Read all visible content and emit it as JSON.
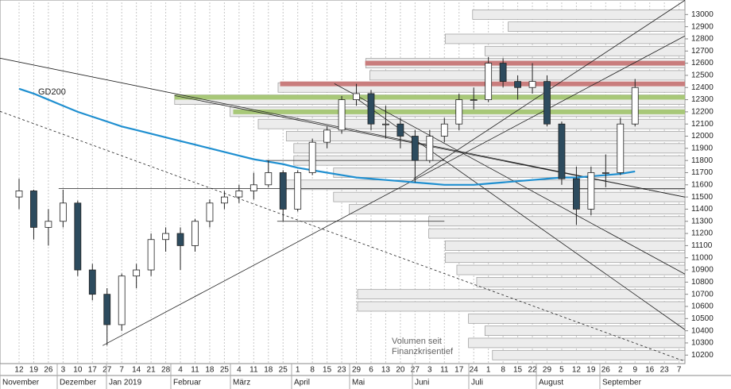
{
  "chart_data": {
    "type": "candlestick",
    "ylim": [
      10130,
      13100
    ],
    "yticks": [
      10200,
      10300,
      10400,
      10500,
      10600,
      10700,
      10800,
      10900,
      11000,
      11100,
      11200,
      11300,
      11400,
      11500,
      11600,
      11700,
      11800,
      11900,
      12000,
      12100,
      12200,
      12300,
      12400,
      12500,
      12600,
      12700,
      12800,
      12900,
      13000
    ],
    "x_tick_labels": [
      "12",
      "19",
      "26",
      "3",
      "10",
      "17",
      "27",
      "7",
      "14",
      "21",
      "28",
      "4",
      "11",
      "18",
      "25",
      "4",
      "11",
      "18",
      "25",
      "1",
      "8",
      "15",
      "23",
      "29",
      "6",
      "13",
      "20",
      "27",
      "3",
      "11",
      "17",
      "24",
      "1",
      "8",
      "15",
      "22",
      "29",
      "5",
      "12",
      "19",
      "26",
      "2",
      "9",
      "16",
      "23",
      "7"
    ],
    "months": [
      "November",
      "Dezember",
      "Jan 2019",
      "Februar",
      "März",
      "April",
      "Mai",
      "Juni",
      "Juli",
      "August",
      "September"
    ],
    "candles": [
      [
        11500,
        11650,
        11400,
        11550
      ],
      [
        11550,
        11560,
        11150,
        11250
      ],
      [
        11250,
        11400,
        11100,
        11300
      ],
      [
        11300,
        11560,
        11250,
        11450
      ],
      [
        11450,
        11470,
        10850,
        10900
      ],
      [
        10900,
        10950,
        10650,
        10700
      ],
      [
        10700,
        10750,
        10280,
        10450
      ],
      [
        10450,
        10870,
        10400,
        10850
      ],
      [
        10850,
        10950,
        10750,
        10900
      ],
      [
        10900,
        11200,
        10850,
        11150
      ],
      [
        11150,
        11250,
        11050,
        11200
      ],
      [
        11200,
        11250,
        10900,
        11100
      ],
      [
        11100,
        11320,
        11050,
        11300
      ],
      [
        11300,
        11480,
        11250,
        11450
      ],
      [
        11450,
        11550,
        11400,
        11500
      ],
      [
        11500,
        11600,
        11450,
        11550
      ],
      [
        11550,
        11700,
        11480,
        11600
      ],
      [
        11600,
        11800,
        11580,
        11700
      ],
      [
        11700,
        11720,
        11300,
        11400
      ],
      [
        11400,
        11720,
        11380,
        11700
      ],
      [
        11700,
        11980,
        11680,
        11950
      ],
      [
        11950,
        12080,
        11900,
        12050
      ],
      [
        12050,
        12330,
        12020,
        12300
      ],
      [
        12300,
        12430,
        12250,
        12350
      ],
      [
        12350,
        12380,
        12050,
        12100
      ],
      [
        12100,
        12250,
        11980,
        12100
      ],
      [
        12100,
        12150,
        11900,
        12000
      ],
      [
        12000,
        12050,
        11620,
        11800
      ],
      [
        11800,
        12050,
        11780,
        12000
      ],
      [
        12000,
        12150,
        11950,
        12100
      ],
      [
        12100,
        12350,
        12050,
        12300
      ],
      [
        12300,
        12400,
        12220,
        12300
      ],
      [
        12300,
        12650,
        12280,
        12600
      ],
      [
        12600,
        12640,
        12400,
        12450
      ],
      [
        12450,
        12500,
        12300,
        12400
      ],
      [
        12400,
        12600,
        12350,
        12450
      ],
      [
        12450,
        12500,
        12080,
        12100
      ],
      [
        12100,
        12120,
        11600,
        11650
      ],
      [
        11650,
        11750,
        11270,
        11400
      ],
      [
        11400,
        11750,
        11350,
        11700
      ],
      [
        11700,
        11850,
        11580,
        11700
      ],
      [
        11700,
        12150,
        11680,
        12100
      ],
      [
        12100,
        12470,
        12080,
        12400
      ]
    ],
    "up_color": "#ffffff",
    "down_color": "#2d4b5e",
    "gd200": {
      "name": "GD200",
      "color": "#1f8fd0",
      "values": [
        12390,
        12350,
        12300,
        12250,
        12200,
        12160,
        12120,
        12080,
        12050,
        12020,
        11990,
        11960,
        11930,
        11900,
        11870,
        11840,
        11810,
        11790,
        11770,
        11740,
        11720,
        11700,
        11680,
        11660,
        11650,
        11640,
        11630,
        11620,
        11610,
        11600,
        11600,
        11600,
        11610,
        11620,
        11630,
        11640,
        11650,
        11660,
        11660,
        11670,
        11680,
        11690,
        11710
      ]
    },
    "volume_profile": {
      "label": "Volumen seit Finanzkrisentief",
      "xlim": [
        0,
        1000
      ],
      "levels": [
        13000,
        12900,
        12800,
        12700,
        12600,
        12500,
        12400,
        12300,
        12200,
        12100,
        12000,
        11900,
        11800,
        11700,
        11600,
        11500,
        11400,
        11300,
        11200,
        11100,
        11000,
        10900,
        10800,
        10700,
        10600,
        10500,
        10400,
        10300,
        10200
      ],
      "values": [
        310,
        258,
        350,
        292,
        466,
        460,
        594,
        745,
        664,
        623,
        582,
        571,
        571,
        513,
        582,
        513,
        490,
        374,
        374,
        350,
        350,
        333,
        304,
        478,
        478,
        316,
        292,
        316,
        281
      ]
    },
    "zones": [
      {
        "price": 12600,
        "start": 23.6,
        "color": "#c97d7d"
      },
      {
        "price": 12430,
        "start": 17.8,
        "color": "#c97d7d"
      },
      {
        "price": 12320,
        "start": 10.6,
        "color": "#a8c878"
      },
      {
        "price": 12200,
        "start": 14.6,
        "color": "#a8c878"
      }
    ],
    "xlim": [
      -1.3,
      45.4
    ],
    "trendlines": [
      {
        "from": [
          -1.3,
          12641
        ],
        "to": [
          45.4,
          11499
        ],
        "dashed": false
      },
      {
        "from": [
          -1.3,
          12204
        ],
        "to": [
          45.4,
          10148
        ],
        "dashed": true
      },
      {
        "from": [
          5.7,
          10278
        ],
        "to": [
          45.4,
          12824
        ],
        "dashed": false
      },
      {
        "from": [
          26.9,
          11649
        ],
        "to": [
          45.4,
          13117
        ],
        "dashed": false
      },
      {
        "from": [
          21.5,
          12432
        ],
        "to": [
          45.4,
          10866
        ],
        "dashed": false
      },
      {
        "from": [
          23.1,
          12302
        ],
        "to": [
          45.4,
          10409
        ],
        "dashed": false
      },
      {
        "from": [
          10.6,
          12334
        ],
        "to": [
          45.4,
          11499
        ],
        "dashed": false
      },
      {
        "from": [
          2.7,
          11570
        ],
        "to": [
          45.4,
          11570
        ],
        "dashed": false
      },
      {
        "from": [
          16.8,
          11800
        ],
        "to": [
          29,
          11800
        ],
        "dashed": false
      },
      {
        "from": [
          17.6,
          11300
        ],
        "to": [
          29,
          11300
        ],
        "dashed": false
      }
    ]
  }
}
